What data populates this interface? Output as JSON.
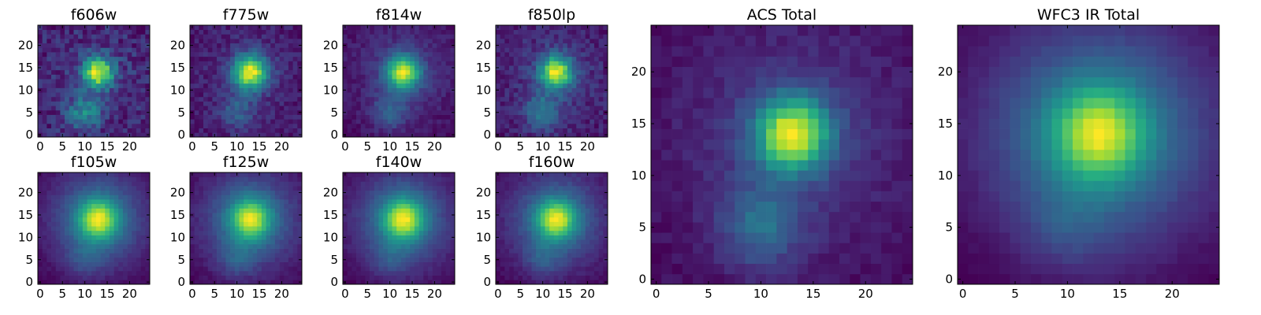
{
  "figure": {
    "background": "#ffffff",
    "colormap": "viridis",
    "colormap_stops": [
      "#440154",
      "#472c7a",
      "#3b518b",
      "#2c718e",
      "#21908d",
      "#27ad81",
      "#5cc863",
      "#aadc32",
      "#fde725"
    ]
  },
  "chart_data": [
    {
      "type": "heatmap",
      "title": "f606w",
      "grid_size": 25,
      "xlim": [
        0,
        24
      ],
      "ylim": [
        0,
        24
      ],
      "xticks": [
        "0",
        "5",
        "10",
        "15",
        "20"
      ],
      "yticks": [
        "0",
        "5",
        "10",
        "15",
        "20"
      ],
      "peak": [
        13,
        14
      ],
      "core_width": 2.4,
      "core_amp": 0.8,
      "halo_width": 7,
      "halo_amp": 0.05,
      "tail_amp": 0.35,
      "noise": 0.22,
      "floor": 0.4,
      "seed": 3
    },
    {
      "type": "heatmap",
      "title": "f775w",
      "grid_size": 25,
      "xlim": [
        0,
        24
      ],
      "ylim": [
        0,
        24
      ],
      "xticks": [
        "0",
        "5",
        "10",
        "15",
        "20"
      ],
      "yticks": [
        "0",
        "5",
        "10",
        "15",
        "20"
      ],
      "peak": [
        13,
        14
      ],
      "core_width": 2.6,
      "core_amp": 0.75,
      "halo_width": 7,
      "halo_amp": 0.08,
      "tail_amp": 0.2,
      "noise": 0.13,
      "floor": 0.28,
      "seed": 7
    },
    {
      "type": "heatmap",
      "title": "f814w",
      "grid_size": 25,
      "xlim": [
        0,
        24
      ],
      "ylim": [
        0,
        24
      ],
      "xticks": [
        "0",
        "5",
        "10",
        "15",
        "20"
      ],
      "yticks": [
        "0",
        "5",
        "10",
        "15",
        "20"
      ],
      "peak": [
        13,
        14
      ],
      "core_width": 2.6,
      "core_amp": 0.75,
      "halo_width": 7,
      "halo_amp": 0.15,
      "tail_amp": 0.22,
      "noise": 0.1,
      "floor": 0.2,
      "seed": 11
    },
    {
      "type": "heatmap",
      "title": "f850lp",
      "grid_size": 25,
      "xlim": [
        0,
        24
      ],
      "ylim": [
        0,
        24
      ],
      "xticks": [
        "0",
        "5",
        "10",
        "15",
        "20"
      ],
      "yticks": [
        "0",
        "5",
        "10",
        "15",
        "20"
      ],
      "peak": [
        13,
        14
      ],
      "core_width": 2.5,
      "core_amp": 0.75,
      "halo_width": 7,
      "halo_amp": 0.1,
      "tail_amp": 0.3,
      "noise": 0.15,
      "floor": 0.25,
      "seed": 19
    },
    {
      "type": "heatmap",
      "title": "f105w",
      "grid_size": 25,
      "xlim": [
        0,
        24
      ],
      "ylim": [
        0,
        24
      ],
      "xticks": [
        "0",
        "5",
        "10",
        "15",
        "20"
      ],
      "yticks": [
        "0",
        "5",
        "10",
        "15",
        "20"
      ],
      "peak": [
        13,
        14
      ],
      "core_width": 3.0,
      "core_amp": 0.6,
      "halo_width": 8,
      "halo_amp": 0.4,
      "tail_amp": 0.12,
      "noise": 0.05,
      "floor": 0.05,
      "seed": 23
    },
    {
      "type": "heatmap",
      "title": "f125w",
      "grid_size": 25,
      "xlim": [
        0,
        24
      ],
      "ylim": [
        0,
        24
      ],
      "xticks": [
        "0",
        "5",
        "10",
        "15",
        "20"
      ],
      "yticks": [
        "0",
        "5",
        "10",
        "15",
        "20"
      ],
      "peak": [
        13,
        14
      ],
      "core_width": 3.0,
      "core_amp": 0.6,
      "halo_width": 8,
      "halo_amp": 0.4,
      "tail_amp": 0.15,
      "noise": 0.06,
      "floor": 0.05,
      "seed": 29
    },
    {
      "type": "heatmap",
      "title": "f140w",
      "grid_size": 25,
      "xlim": [
        0,
        24
      ],
      "ylim": [
        0,
        24
      ],
      "xticks": [
        "0",
        "5",
        "10",
        "15",
        "20"
      ],
      "yticks": [
        "0",
        "5",
        "10",
        "15",
        "20"
      ],
      "peak": [
        13,
        14
      ],
      "core_width": 3.0,
      "core_amp": 0.6,
      "halo_width": 8,
      "halo_amp": 0.4,
      "tail_amp": 0.12,
      "noise": 0.05,
      "floor": 0.05,
      "seed": 31
    },
    {
      "type": "heatmap",
      "title": "f160w",
      "grid_size": 25,
      "xlim": [
        0,
        24
      ],
      "ylim": [
        0,
        24
      ],
      "xticks": [
        "0",
        "5",
        "10",
        "15",
        "20"
      ],
      "yticks": [
        "0",
        "5",
        "10",
        "15",
        "20"
      ],
      "peak": [
        13,
        14
      ],
      "core_width": 2.9,
      "core_amp": 0.62,
      "halo_width": 8,
      "halo_amp": 0.38,
      "tail_amp": 0.14,
      "noise": 0.06,
      "floor": 0.05,
      "seed": 37
    },
    {
      "type": "heatmap",
      "title": "ACS Total",
      "grid_size": 25,
      "xlim": [
        0,
        24
      ],
      "ylim": [
        0,
        24
      ],
      "xticks": [
        "0",
        "5",
        "10",
        "15",
        "20"
      ],
      "yticks": [
        "0",
        "5",
        "10",
        "15",
        "20"
      ],
      "peak": [
        13,
        14
      ],
      "core_width": 2.4,
      "core_amp": 0.72,
      "halo_width": 7,
      "halo_amp": 0.15,
      "tail_amp": 0.25,
      "noise": 0.07,
      "floor": 0.18,
      "seed": 41
    },
    {
      "type": "heatmap",
      "title": "WFC3 IR Total",
      "grid_size": 25,
      "xlim": [
        0,
        24
      ],
      "ylim": [
        0,
        24
      ],
      "xticks": [
        "0",
        "5",
        "10",
        "15",
        "20"
      ],
      "yticks": [
        "0",
        "5",
        "10",
        "15",
        "20"
      ],
      "peak": [
        13,
        14
      ],
      "core_width": 3.0,
      "core_amp": 0.55,
      "halo_width": 8,
      "halo_amp": 0.45,
      "tail_amp": 0.1,
      "noise": 0.03,
      "floor": 0.02,
      "seed": 43
    }
  ]
}
